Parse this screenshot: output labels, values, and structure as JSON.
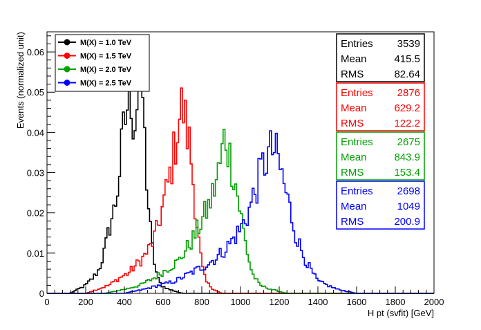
{
  "chart_data": {
    "type": "histogram",
    "xlabel": "H pt (svfit) [GeV]",
    "ylabel": "Events (normalized unit)",
    "xlim": [
      0,
      2000
    ],
    "ylim": [
      0,
      0.065
    ],
    "x_ticks": [
      "0",
      "200",
      "400",
      "600",
      "800",
      "1000",
      "1200",
      "1400",
      "1600",
      "1800",
      "2000"
    ],
    "y_ticks": [
      "0",
      "0.01",
      "0.02",
      "0.03",
      "0.04",
      "0.05",
      "0.06"
    ],
    "y_tick_values": [
      0,
      0.01,
      0.02,
      0.03,
      0.04,
      0.05,
      0.06
    ],
    "bin_width": 10,
    "legend_position": "top-left",
    "series": [
      {
        "name": "M(X) = 1.0 TeV",
        "color": "#000000",
        "stats": {
          "entries": "3539",
          "mean": "415.5",
          "rms": "82.64"
        },
        "peaks": [
          [
            120,
            0.0
          ],
          [
            160,
            0.001
          ],
          [
            200,
            0.002
          ],
          [
            240,
            0.004
          ],
          [
            270,
            0.006
          ],
          [
            300,
            0.011
          ],
          [
            330,
            0.018
          ],
          [
            350,
            0.021
          ],
          [
            370,
            0.028
          ],
          [
            390,
            0.038
          ],
          [
            410,
            0.045
          ],
          [
            430,
            0.052
          ],
          [
            450,
            0.041
          ],
          [
            470,
            0.05
          ],
          [
            490,
            0.055
          ],
          [
            510,
            0.032
          ],
          [
            530,
            0.018
          ],
          [
            550,
            0.009
          ],
          [
            570,
            0.004
          ],
          [
            590,
            0.002
          ],
          [
            630,
            0.001
          ],
          [
            700,
            0.0
          ]
        ]
      },
      {
        "name": "M(X) = 1.5 TeV",
        "color": "#ff0000",
        "stats": {
          "entries": "2876",
          "mean": "629.2",
          "rms": "122.2"
        },
        "peaks": [
          [
            200,
            0.0
          ],
          [
            260,
            0.001
          ],
          [
            320,
            0.002
          ],
          [
            380,
            0.004
          ],
          [
            420,
            0.005
          ],
          [
            460,
            0.007
          ],
          [
            500,
            0.009
          ],
          [
            540,
            0.012
          ],
          [
            570,
            0.016
          ],
          [
            600,
            0.022
          ],
          [
            630,
            0.028
          ],
          [
            660,
            0.036
          ],
          [
            680,
            0.043
          ],
          [
            700,
            0.047
          ],
          [
            720,
            0.041
          ],
          [
            740,
            0.036
          ],
          [
            760,
            0.025
          ],
          [
            780,
            0.015
          ],
          [
            800,
            0.007
          ],
          [
            820,
            0.003
          ],
          [
            860,
            0.001
          ],
          [
            900,
            0.0
          ]
        ]
      },
      {
        "name": "M(X) = 2.0 TeV",
        "color": "#00a000",
        "stats": {
          "entries": "2675",
          "mean": "843.9",
          "rms": "153.4"
        },
        "peaks": [
          [
            300,
            0.0
          ],
          [
            400,
            0.001
          ],
          [
            480,
            0.002
          ],
          [
            560,
            0.004
          ],
          [
            620,
            0.006
          ],
          [
            680,
            0.008
          ],
          [
            720,
            0.011
          ],
          [
            760,
            0.014
          ],
          [
            800,
            0.018
          ],
          [
            840,
            0.022
          ],
          [
            870,
            0.027
          ],
          [
            900,
            0.033
          ],
          [
            920,
            0.04
          ],
          [
            940,
            0.035
          ],
          [
            960,
            0.031
          ],
          [
            980,
            0.026
          ],
          [
            1000,
            0.02
          ],
          [
            1020,
            0.014
          ],
          [
            1040,
            0.009
          ],
          [
            1060,
            0.005
          ],
          [
            1100,
            0.002
          ],
          [
            1160,
            0.001
          ],
          [
            1240,
            0.0
          ]
        ]
      },
      {
        "name": "M(X) = 2.5 TeV",
        "color": "#0000ff",
        "stats": {
          "entries": "2698",
          "mean": "1049",
          "rms": "200.9"
        },
        "peaks": [
          [
            400,
            0.0
          ],
          [
            500,
            0.001
          ],
          [
            580,
            0.002
          ],
          [
            660,
            0.003
          ],
          [
            740,
            0.005
          ],
          [
            820,
            0.007
          ],
          [
            880,
            0.009
          ],
          [
            940,
            0.012
          ],
          [
            1000,
            0.016
          ],
          [
            1040,
            0.02
          ],
          [
            1080,
            0.026
          ],
          [
            1110,
            0.031
          ],
          [
            1140,
            0.034
          ],
          [
            1170,
            0.036
          ],
          [
            1200,
            0.032
          ],
          [
            1230,
            0.026
          ],
          [
            1260,
            0.02
          ],
          [
            1290,
            0.014
          ],
          [
            1320,
            0.01
          ],
          [
            1360,
            0.006
          ],
          [
            1400,
            0.003
          ],
          [
            1450,
            0.002
          ],
          [
            1500,
            0.001
          ],
          [
            1600,
            0.0
          ]
        ]
      }
    ]
  }
}
